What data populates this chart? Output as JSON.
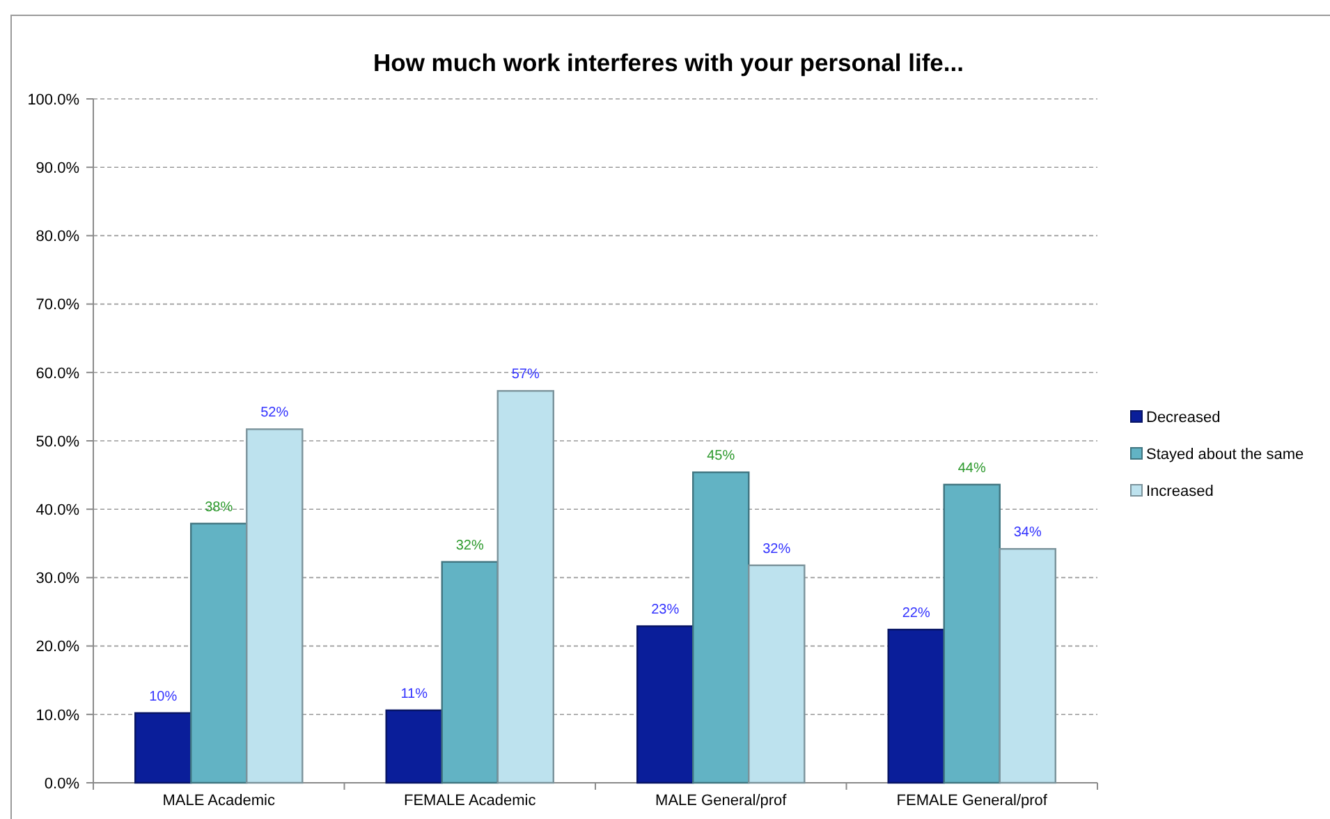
{
  "chart_data": {
    "type": "bar",
    "title": "How much work interferes with your personal life...",
    "categories": [
      "MALE Academic",
      "FEMALE Academic",
      "MALE General/prof",
      "FEMALE General/prof"
    ],
    "series": [
      {
        "name": "Decreased",
        "color": "#0a1e9a",
        "values": [
          10.2,
          10.6,
          22.9,
          22.4
        ],
        "value_labels": [
          "10%",
          "11%",
          "23%",
          "22%"
        ]
      },
      {
        "name": "Stayed about the same",
        "color": "#62b3c4",
        "values": [
          37.9,
          32.3,
          45.4,
          43.6
        ],
        "value_labels": [
          "38%",
          "32%",
          "45%",
          "44%"
        ]
      },
      {
        "name": "Increased",
        "color": "#bde2ee",
        "values": [
          51.7,
          57.3,
          31.8,
          34.2
        ],
        "value_labels": [
          "52%",
          "57%",
          "32%",
          "34%"
        ]
      }
    ],
    "ylim": [
      0,
      100
    ],
    "yticks": [
      {
        "value": 0,
        "label": "0.0%"
      },
      {
        "value": 10,
        "label": "10.0%"
      },
      {
        "value": 20,
        "label": "20.0%"
      },
      {
        "value": 30,
        "label": "30.0%"
      },
      {
        "value": 40,
        "label": "40.0%"
      },
      {
        "value": 50,
        "label": "50.0%"
      },
      {
        "value": 60,
        "label": "60.0%"
      },
      {
        "value": 70,
        "label": "70.0%"
      },
      {
        "value": 80,
        "label": "80.0%"
      },
      {
        "value": 90,
        "label": "90.0%"
      },
      {
        "value": 100,
        "label": "100.0%"
      }
    ],
    "grid": "y",
    "legend": "right"
  }
}
